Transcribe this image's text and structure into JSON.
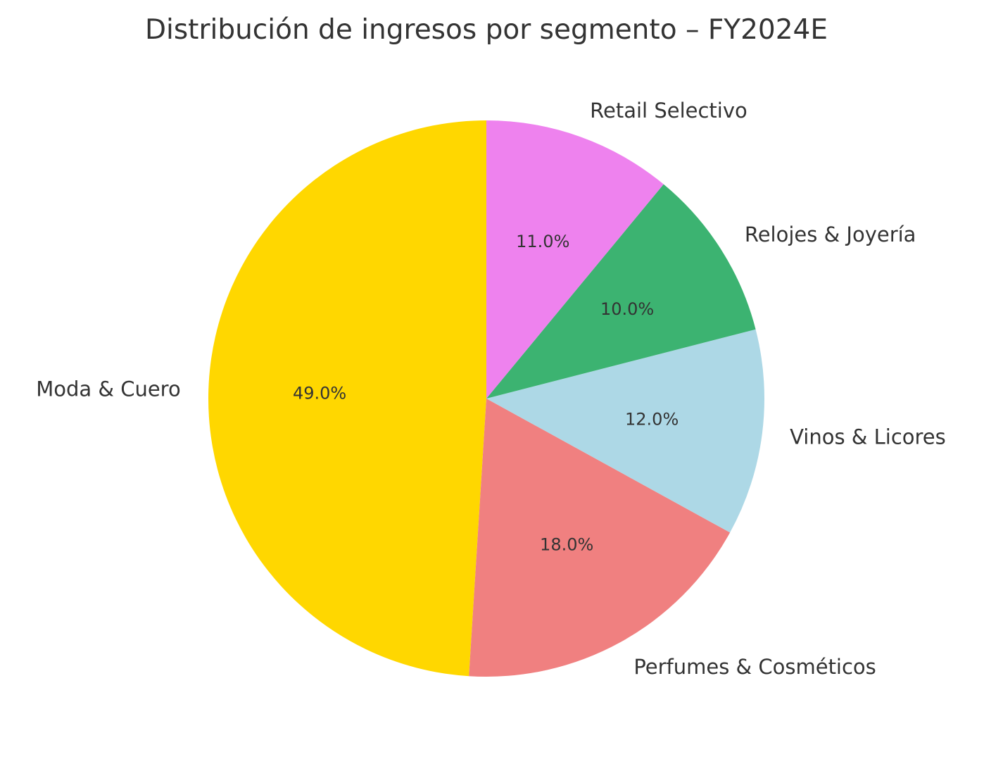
{
  "chart_data": {
    "type": "pie",
    "title": "Distribución de ingresos por segmento – FY2024E",
    "categories": [
      "Moda & Cuero",
      "Perfumes & Cosméticos",
      "Vinos & Licores",
      "Relojes & Joyería",
      "Retail Selectivo"
    ],
    "values": [
      49.0,
      18.0,
      12.0,
      10.0,
      11.0
    ],
    "value_labels": [
      "49.0%",
      "18.0%",
      "12.0%",
      "10.0%",
      "11.0%"
    ],
    "colors": [
      "#FFD700",
      "#F08080",
      "#ADD8E6",
      "#3CB371",
      "#EE82EE"
    ],
    "start_angle_deg": 90,
    "direction": "counterclockwise"
  }
}
